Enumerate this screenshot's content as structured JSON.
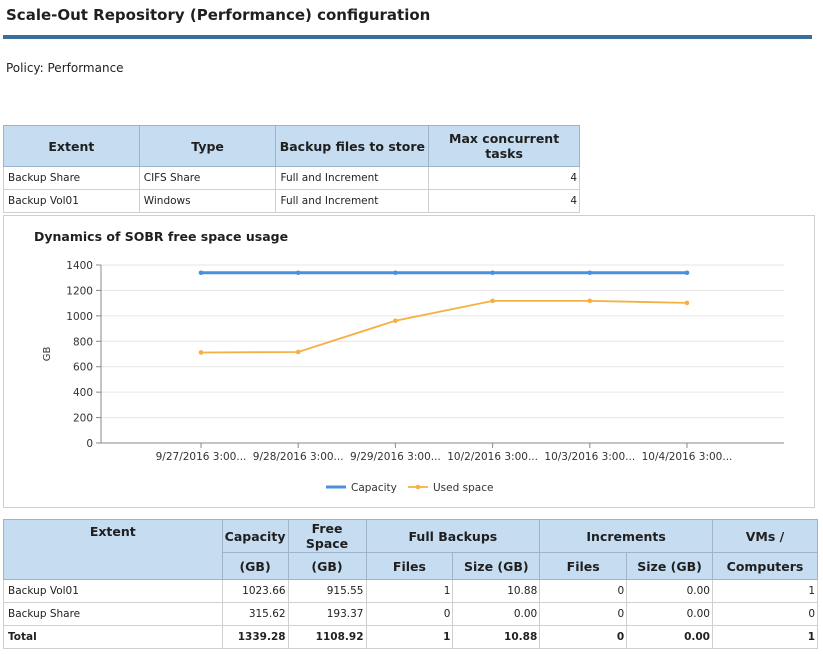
{
  "page": {
    "title": "Scale-Out Repository (Performance) configuration",
    "policy": "Policy: Performance"
  },
  "extents_table": {
    "headers": {
      "extent": "Extent",
      "type": "Type",
      "backup_files": "Backup files to store",
      "max_tasks_line1": "Max concurrent",
      "max_tasks_line2": "tasks"
    },
    "rows": [
      {
        "extent": "Backup Share",
        "type": "CIFS Share",
        "backup_files": "Full and Increment",
        "max_tasks": "4"
      },
      {
        "extent": "Backup Vol01",
        "type": "Windows",
        "backup_files": "Full and Increment",
        "max_tasks": "4"
      }
    ]
  },
  "chart_data": {
    "type": "line",
    "title": "Dynamics of SOBR free space usage",
    "ylabel": "GB",
    "xlabel": "",
    "ylim": [
      0,
      1400
    ],
    "yticks": [
      "0",
      "200",
      "400",
      "600",
      "800",
      "1000",
      "1200",
      "1400"
    ],
    "categories": [
      "9/27/2016 3:00...",
      "9/28/2016 3:00...",
      "9/29/2016 3:00...",
      "10/2/2016 3:00...",
      "10/3/2016 3:00...",
      "10/4/2016 3:00..."
    ],
    "series": [
      {
        "name": "Capacity",
        "color": "#4a90e2",
        "values": [
          1339,
          1339,
          1339,
          1339,
          1339,
          1339
        ]
      },
      {
        "name": "Used space",
        "color": "#f5b041",
        "values": [
          712,
          716,
          962,
          1118,
          1118,
          1102
        ]
      }
    ],
    "legend": "bottom-center",
    "grid": true
  },
  "summary_table": {
    "headers": {
      "extent": "Extent",
      "capacity_line1": "Capacity",
      "capacity_line2": "(GB)",
      "free_line1": "Free Space",
      "free_line2": "(GB)",
      "full_backups": "Full Backups",
      "increments": "Increments",
      "vms_line1": "VMs /",
      "vms_line2": "Computers",
      "files": "Files",
      "size": "Size (GB)"
    },
    "rows": [
      {
        "extent": "Backup Vol01",
        "capacity": "1023.66",
        "free": "915.55",
        "full_files": "1",
        "full_size": "10.88",
        "inc_files": "0",
        "inc_size": "0.00",
        "vms": "1"
      },
      {
        "extent": "Backup Share",
        "capacity": "315.62",
        "free": "193.37",
        "full_files": "0",
        "full_size": "0.00",
        "inc_files": "0",
        "inc_size": "0.00",
        "vms": "0"
      }
    ],
    "total": {
      "extent": "Total",
      "capacity": "1339.28",
      "free": "1108.92",
      "full_files": "1",
      "full_size": "10.88",
      "inc_files": "0",
      "inc_size": "0.00",
      "vms": "1"
    }
  }
}
